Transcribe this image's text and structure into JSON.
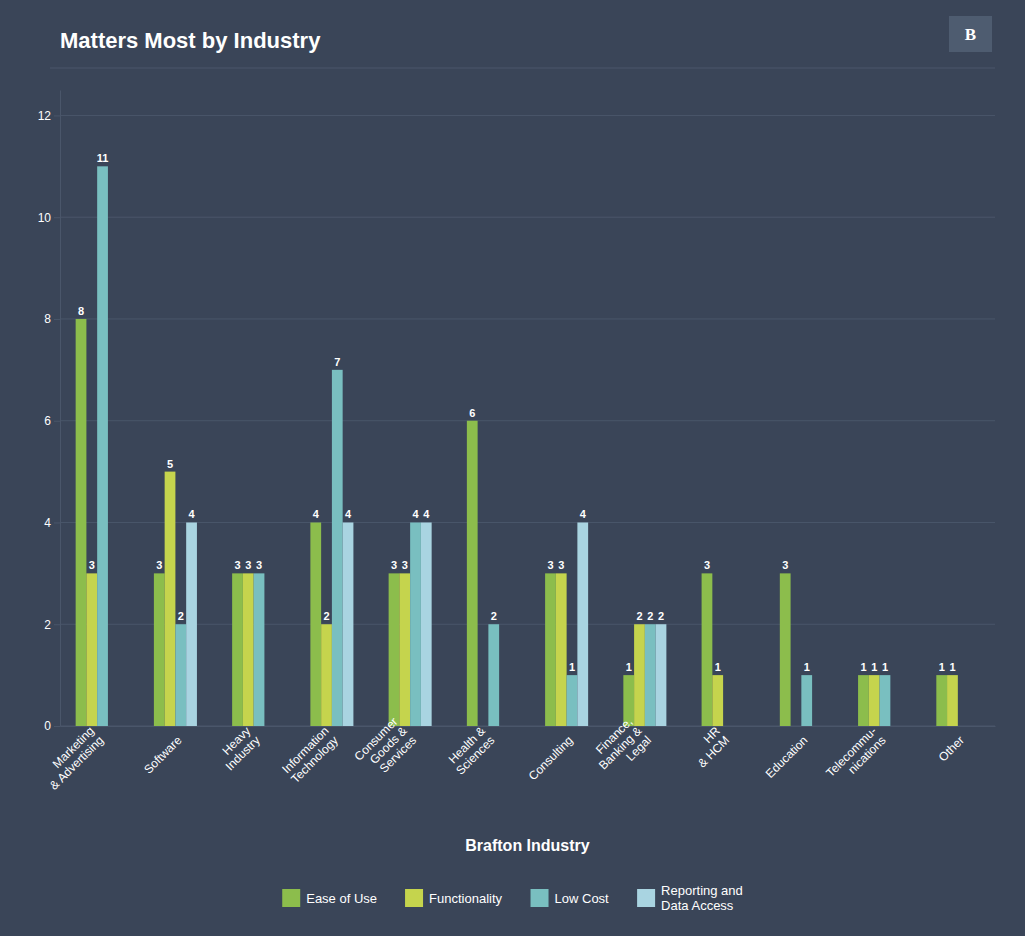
{
  "chart_data": {
    "type": "bar",
    "title": "Matters Most by Industry",
    "xlabel": "Brafton Industry",
    "categories": [
      "Marketing\n& Advertising",
      "Software",
      "Heavy\nIndustry",
      "Information\nTechnology",
      "Consumer\nGoods &\nServices",
      "Health &\nSciences",
      "Consulting",
      "Finance,\nBanking &\nLegal",
      "HR\n& HCM",
      "Education",
      "Telecommu-\nnications",
      "Other"
    ],
    "series": [
      {
        "name": "Ease of Use",
        "color": "#8cbd4c",
        "values": [
          8,
          3,
          3,
          4,
          3,
          6,
          3,
          1,
          3,
          3,
          1,
          1
        ],
        "value_labels": [
          "8",
          "3",
          "3",
          "4",
          "3",
          "6",
          "3",
          "1",
          "3",
          "3",
          "1",
          "1"
        ]
      },
      {
        "name": "Functionality",
        "color": "#c5d44d",
        "values": [
          3,
          5,
          3,
          2,
          3,
          0,
          3,
          2,
          1,
          0,
          1,
          1
        ],
        "value_labels": [
          "3",
          "5",
          "3",
          "2",
          "3",
          null,
          "3",
          "2",
          "1",
          null,
          "1",
          "1"
        ]
      },
      {
        "name": "Low Cost",
        "color": "#79bfc0",
        "values": [
          11,
          2,
          3,
          7,
          4,
          2,
          1,
          2,
          0,
          1,
          1,
          0
        ],
        "value_labels": [
          "11",
          "2",
          "3",
          "7",
          "4",
          "2",
          "1",
          "2",
          null,
          "1",
          "1",
          null
        ]
      },
      {
        "name": "Reporting and\nData Access",
        "color": "#a9d4e1",
        "values": [
          0,
          4,
          0,
          4,
          4,
          0,
          4,
          2,
          0,
          0,
          0,
          0
        ],
        "value_labels": [
          null,
          "4",
          null,
          "4",
          "4",
          null,
          "4",
          "2",
          null,
          null,
          null,
          null
        ]
      }
    ],
    "ylim": [
      0,
      12.5
    ],
    "yticks": [
      0,
      2,
      4,
      6,
      8,
      10,
      12
    ],
    "grid": true,
    "legend": "bottom",
    "data_labels": true,
    "annotations": [
      {
        "text": "B"
      }
    ]
  }
}
